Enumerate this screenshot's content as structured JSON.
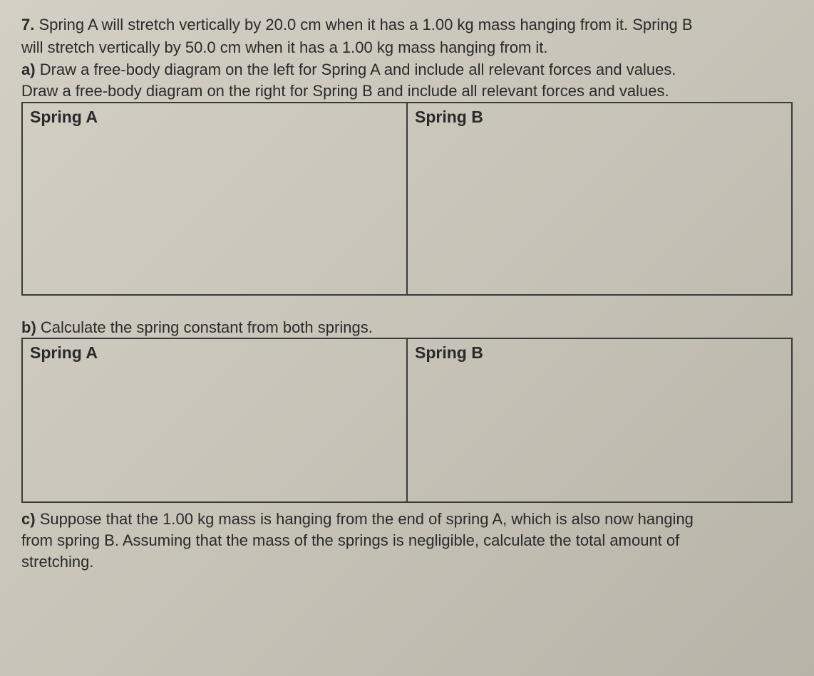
{
  "question": {
    "number": "7.",
    "intro_line1": "Spring A will stretch vertically by 20.0 cm when it has a 1.00 kg mass hanging from it. Spring B",
    "intro_line2": "will stretch vertically by 50.0 cm when it has a 1.00 kg mass hanging from it."
  },
  "part_a": {
    "letter": "a)",
    "line1": "Draw a free-body diagram on the left for Spring A and include all relevant forces and values.",
    "line2": "Draw a free-body diagram on the right for Spring B and include all relevant forces and values.",
    "cell_left_label": "Spring A",
    "cell_right_label": "Spring B"
  },
  "part_b": {
    "letter": "b)",
    "text": "Calculate the spring constant from both springs.",
    "cell_left_label": "Spring A",
    "cell_right_label": "Spring B"
  },
  "part_c": {
    "letter": "c)",
    "line1": "Suppose that the 1.00 kg mass is hanging from the end of spring A, which is also now hanging",
    "line2": "from spring B. Assuming that the mass of the springs is negligible, calculate the total amount of",
    "line3": "stretching."
  },
  "styling": {
    "background_gradient_start": "#d4cfc5",
    "background_gradient_end": "#b8b3a8",
    "text_color": "#2a2a2a",
    "border_color": "#3a3a3a",
    "body_fontsize": 22,
    "label_fontsize": 23,
    "table_a_height": 270,
    "table_b_height": 230,
    "font_family": "Arial"
  }
}
